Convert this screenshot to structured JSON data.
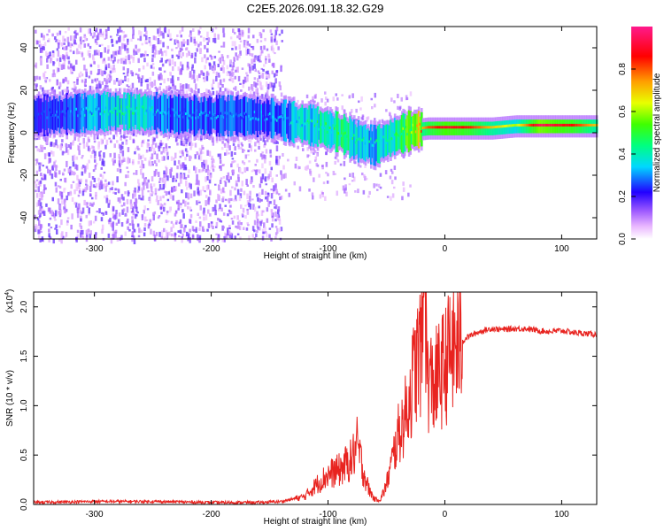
{
  "chart_data": [
    {
      "type": "heatmap",
      "title": "C2E5.2026.091.18.32.G29",
      "xlabel": "Height of straight line (km)",
      "ylabel": "Frequency (Hz)",
      "xlim": [
        -352,
        130
      ],
      "ylim": [
        -50,
        50
      ],
      "xticks": [
        "-300",
        "-200",
        "-100",
        "0",
        "100"
      ],
      "yticks": [
        "-40",
        "-20",
        "0",
        "20",
        "40"
      ],
      "colorbar": {
        "label": "Normalized spectral amplitude",
        "range": [
          0,
          1
        ],
        "ticks": [
          "0.0",
          "0.2",
          "0.4",
          "0.6",
          "0.8"
        ]
      },
      "ridge": [
        {
          "x": -350,
          "freq": 8,
          "amp": 0.25
        },
        {
          "x": -320,
          "freq": 9,
          "amp": 0.28
        },
        {
          "x": -290,
          "freq": 10,
          "amp": 0.38
        },
        {
          "x": -270,
          "freq": 10,
          "amp": 0.42
        },
        {
          "x": -240,
          "freq": 9,
          "amp": 0.3
        },
        {
          "x": -210,
          "freq": 8,
          "amp": 0.3
        },
        {
          "x": -180,
          "freq": 8,
          "amp": 0.28
        },
        {
          "x": -150,
          "freq": 7,
          "amp": 0.3
        },
        {
          "x": -130,
          "freq": 5,
          "amp": 0.35
        },
        {
          "x": -110,
          "freq": 3,
          "amp": 0.42
        },
        {
          "x": -90,
          "freq": 0,
          "amp": 0.45
        },
        {
          "x": -75,
          "freq": -4,
          "amp": 0.4
        },
        {
          "x": -60,
          "freq": -6,
          "amp": 0.38
        },
        {
          "x": -45,
          "freq": -2,
          "amp": 0.45
        },
        {
          "x": -30,
          "freq": 1,
          "amp": 0.55
        },
        {
          "x": -15,
          "freq": 2,
          "amp": 0.8
        },
        {
          "x": 0,
          "freq": 2,
          "amp": 0.9
        },
        {
          "x": 20,
          "freq": 2,
          "amp": 0.85
        },
        {
          "x": 40,
          "freq": 2,
          "amp": 0.7
        },
        {
          "x": 60,
          "freq": 3,
          "amp": 0.6
        },
        {
          "x": 80,
          "freq": 3,
          "amp": 0.95
        },
        {
          "x": 95,
          "freq": 3,
          "amp": 0.9
        },
        {
          "x": 110,
          "freq": 3,
          "amp": 0.85
        },
        {
          "x": 128,
          "freq": 3,
          "amp": 0.7
        }
      ]
    },
    {
      "type": "line",
      "xlabel": "Height of straight line (km)",
      "ylabel": "SNR (10 * v/v)",
      "y_multiplier": "(x10",
      "y_multiplier_exp": "4",
      "xlim": [
        -352,
        130
      ],
      "ylim": [
        0,
        2.15
      ],
      "xticks": [
        "-300",
        "-200",
        "-100",
        "0",
        "100"
      ],
      "yticks": [
        "0.0",
        "0.5",
        "1.0",
        "1.5",
        "2.0"
      ],
      "series": [
        {
          "name": "SNR",
          "color": "#e8231f",
          "x": [
            -352,
            -300,
            -250,
            -200,
            -160,
            -140,
            -120,
            -110,
            -100,
            -90,
            -80,
            -75,
            -70,
            -65,
            -60,
            -55,
            -50,
            -45,
            -40,
            -35,
            -30,
            -25,
            -20,
            -17,
            -15,
            -10,
            -5,
            0,
            5,
            10,
            20,
            30,
            40,
            50,
            60,
            70,
            80,
            90,
            100,
            110,
            120,
            130
          ],
          "y": [
            0.02,
            0.03,
            0.03,
            0.02,
            0.02,
            0.03,
            0.08,
            0.2,
            0.3,
            0.35,
            0.45,
            0.6,
            0.35,
            0.15,
            0.05,
            0.05,
            0.2,
            0.45,
            0.7,
            0.85,
            1.1,
            1.4,
            1.6,
            2.15,
            1.3,
            1.2,
            1.3,
            1.4,
            1.55,
            1.6,
            1.7,
            1.75,
            1.78,
            1.77,
            1.78,
            1.78,
            1.76,
            1.75,
            1.76,
            1.74,
            1.73,
            1.72
          ]
        }
      ]
    }
  ]
}
